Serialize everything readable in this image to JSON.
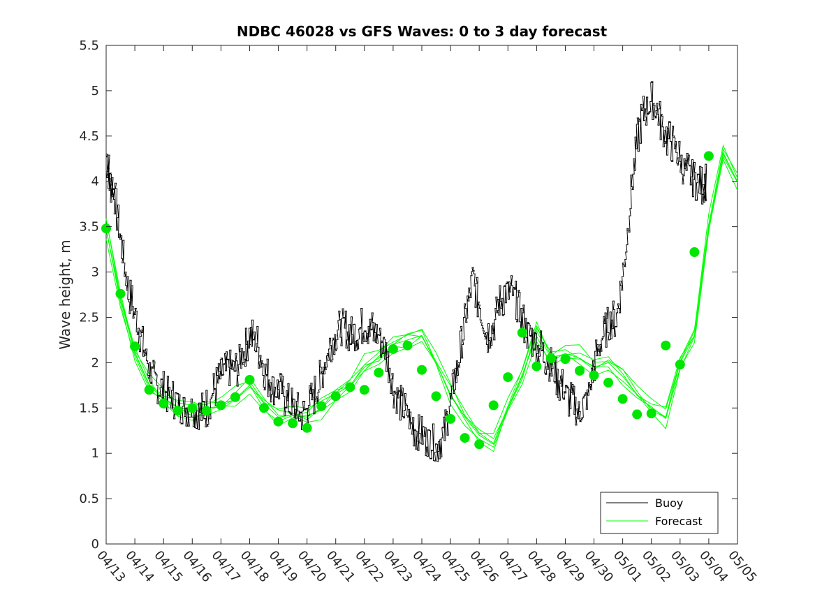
{
  "chart_data": {
    "type": "line",
    "title": "NDBC 46028 vs GFS Waves: 0 to 3 day forecast",
    "xlabel": "",
    "ylabel": "Wave height, m",
    "xlim": [
      "04/13",
      "05/05"
    ],
    "ylim": [
      0,
      5.5
    ],
    "y_ticks": [
      0,
      0.5,
      1,
      1.5,
      2,
      2.5,
      3,
      3.5,
      4,
      4.5,
      5,
      5.5
    ],
    "y_tick_labels": [
      "0",
      "0.5",
      "1",
      "1.5",
      "2",
      "2.5",
      "3",
      "3.5",
      "4",
      "4.5",
      "5",
      "5.5"
    ],
    "x_tick_labels": [
      "04/13",
      "04/14",
      "04/15",
      "04/16",
      "04/17",
      "04/18",
      "04/19",
      "04/20",
      "04/21",
      "04/22",
      "04/23",
      "04/24",
      "04/25",
      "04/26",
      "04/27",
      "04/28",
      "04/29",
      "04/30",
      "05/01",
      "05/02",
      "05/03",
      "05/04",
      "05/05"
    ],
    "grid": false,
    "legend": {
      "placement": "bottom-right",
      "entries": [
        "Buoy",
        "Forecast"
      ]
    },
    "colors": {
      "buoy": "#000000",
      "forecast": "#00ff00",
      "forecast_marker": "#00e600"
    },
    "series": [
      {
        "name": "Buoy",
        "x_day": [
          0,
          0.1,
          0.25,
          0.5,
          0.75,
          1,
          1.25,
          1.5,
          1.75,
          2,
          2.25,
          2.5,
          2.75,
          3,
          3.25,
          3.5,
          3.75,
          4,
          4.25,
          4.5,
          4.75,
          5,
          5.25,
          5.5,
          5.75,
          6,
          6.25,
          6.5,
          6.75,
          7,
          7.25,
          7.5,
          7.75,
          8,
          8.25,
          8.5,
          8.75,
          9,
          9.25,
          9.5,
          9.75,
          10,
          10.25,
          10.5,
          10.75,
          11,
          11.25,
          11.5,
          11.75,
          12,
          12.25,
          12.5,
          12.75,
          13,
          13.25,
          13.5,
          13.75,
          14,
          14.25,
          14.5,
          14.75,
          15,
          15.25,
          15.5,
          15.75,
          16,
          16.25,
          16.5,
          16.75,
          17,
          17.25,
          17.5,
          17.75,
          18,
          18.25,
          18.5,
          18.75,
          19,
          19.25,
          19.5,
          19.75,
          20,
          20.25,
          20.5,
          20.75,
          20.9
        ],
        "values": [
          4.3,
          4.0,
          3.9,
          3.3,
          2.8,
          2.5,
          2.2,
          1.9,
          1.75,
          1.7,
          1.6,
          1.55,
          1.5,
          1.5,
          1.45,
          1.5,
          1.7,
          1.85,
          1.95,
          1.9,
          2.1,
          2.3,
          2.2,
          1.9,
          1.75,
          1.7,
          1.6,
          1.5,
          1.45,
          1.5,
          1.65,
          1.9,
          2.15,
          2.35,
          2.4,
          2.3,
          2.35,
          2.45,
          2.35,
          2.3,
          2.1,
          1.7,
          1.55,
          1.4,
          1.25,
          1.2,
          1.15,
          1.1,
          1.2,
          1.6,
          2.0,
          2.5,
          2.95,
          2.6,
          2.3,
          2.45,
          2.7,
          2.8,
          2.7,
          2.45,
          2.3,
          2.2,
          2.1,
          1.95,
          1.8,
          1.65,
          1.55,
          1.45,
          1.6,
          2.0,
          2.25,
          2.45,
          2.5,
          3.0,
          3.8,
          4.5,
          4.8,
          4.9,
          4.7,
          4.5,
          4.4,
          4.2,
          4.1,
          4.0,
          3.95,
          4.0
        ]
      },
      {
        "name": "Forecast",
        "x_day": [
          0,
          0.5,
          1,
          1.5,
          2,
          2.5,
          3,
          3.5,
          4,
          4.5,
          5,
          5.5,
          6,
          6.5,
          7,
          7.5,
          8,
          8.5,
          9,
          9.5,
          10,
          10.5,
          11,
          11.5,
          12,
          12.5,
          13,
          13.5,
          14,
          14.5,
          15,
          15.5,
          16,
          16.5,
          17,
          17.5,
          18,
          18.5,
          19,
          19.5,
          20,
          20.5,
          21,
          21.5,
          22
        ],
        "values": [
          3.48,
          2.7,
          2.1,
          1.75,
          1.6,
          1.5,
          1.48,
          1.5,
          1.52,
          1.6,
          1.75,
          1.55,
          1.4,
          1.42,
          1.4,
          1.5,
          1.65,
          1.75,
          1.95,
          2.05,
          2.2,
          2.25,
          2.3,
          2.0,
          1.65,
          1.4,
          1.2,
          1.1,
          1.5,
          1.85,
          2.35,
          2.05,
          2.1,
          2.05,
          1.95,
          2.0,
          1.85,
          1.65,
          1.5,
          1.4,
          2.0,
          2.3,
          3.5,
          4.3,
          4.0
        ]
      }
    ],
    "forecast_markers": {
      "x_day": [
        0,
        0.5,
        1,
        1.5,
        2,
        2.5,
        3,
        3.5,
        4,
        4.5,
        5,
        5.5,
        6,
        6.5,
        7,
        7.5,
        8,
        8.5,
        9,
        9.5,
        10,
        10.5,
        11,
        11.5,
        12,
        12.5,
        13,
        13.5,
        14,
        14.5,
        15,
        15.5,
        16,
        16.5,
        17,
        17.5,
        18,
        18.5,
        19,
        19.5,
        20,
        20.5,
        21
      ],
      "values": [
        3.48,
        2.76,
        2.18,
        1.7,
        1.55,
        1.47,
        1.5,
        1.47,
        1.53,
        1.62,
        1.81,
        1.5,
        1.35,
        1.33,
        1.28,
        1.52,
        1.63,
        1.73,
        1.7,
        1.89,
        2.15,
        2.19,
        1.92,
        1.63,
        1.38,
        1.17,
        1.1,
        1.53,
        1.84,
        2.33,
        1.96,
        2.05,
        2.04,
        1.91,
        1.86,
        1.78,
        1.6,
        1.43,
        1.44,
        2.19,
        1.98,
        3.22,
        4.28
      ]
    }
  }
}
